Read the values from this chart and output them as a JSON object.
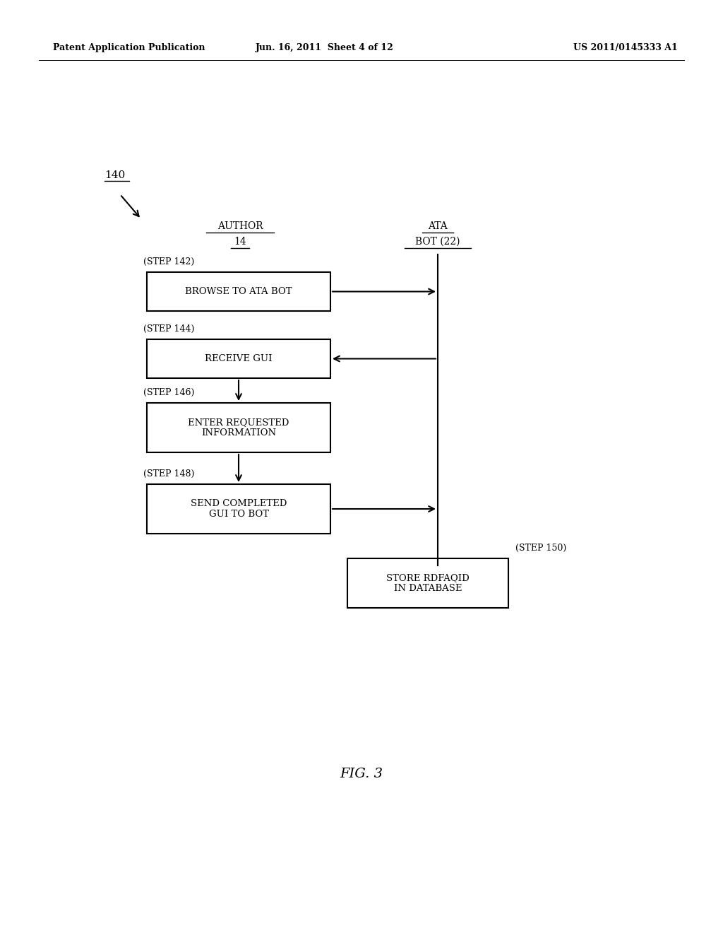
{
  "background_color": "#ffffff",
  "header_left": "Patent Application Publication",
  "header_center": "Jun. 16, 2011  Sheet 4 of 12",
  "header_right": "US 2011/0145333 A1",
  "figure_label": "FIG. 3",
  "diagram_label": "140",
  "author_line1": "AUTHOR",
  "author_line2": "14",
  "ata_line1": "ATA",
  "ata_line2": "BOT (22)",
  "steps": [
    {
      "id": "142",
      "label": "BROWSE TO ATA BOT",
      "lines": 1,
      "arrow_dir": "right"
    },
    {
      "id": "144",
      "label": "RECEIVE GUI",
      "lines": 1,
      "arrow_dir": "left"
    },
    {
      "id": "146",
      "label": "ENTER REQUESTED\nINFORMATION",
      "lines": 2,
      "arrow_dir": "none"
    },
    {
      "id": "148",
      "label": "SEND COMPLETED\nGUI TO BOT",
      "lines": 2,
      "arrow_dir": "right"
    }
  ],
  "step150_label": "STORE RDFAQID\nIN DATABASE",
  "step150_id": "150"
}
